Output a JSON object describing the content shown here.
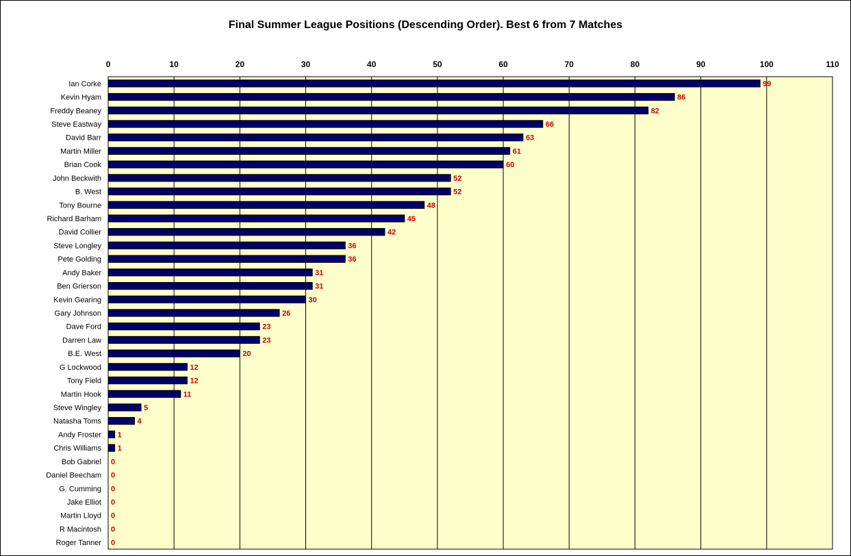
{
  "chart_data": {
    "type": "bar",
    "orientation": "horizontal",
    "title": "Final Summer League Positions (Descending Order). Best 6 from 7 Matches",
    "xlabel": "",
    "ylabel": "",
    "xlim": [
      0,
      110
    ],
    "x_ticks": [
      "0",
      "10",
      "20",
      "30",
      "40",
      "50",
      "60",
      "70",
      "80",
      "90",
      "100",
      "110"
    ],
    "x_axis_position": "top",
    "grid": true,
    "legend": "none",
    "categories": [
      "Ian Corke",
      "Kevin Hyam",
      "Freddy Beaney",
      "Steve Eastway",
      "David Barr",
      "Martin Miller",
      "Brian Cook",
      "John Beckwith",
      "B. West",
      "Tony Bourne",
      "Richard  Barham",
      "David Collier",
      "Steve Longley",
      "Pete Golding",
      "Andy Baker",
      "Ben Grierson",
      "Kevin Gearing",
      "Gary Johnson",
      "Dave Ford",
      "Darren Law",
      "B.E. West",
      "G Lockwood",
      "Tony Field",
      "Martin Hook",
      "Steve Wingley",
      "Natasha Toms",
      "Andy Froster",
      "Chris Williams",
      "Bob Gabriel",
      "Daniel Beecham",
      "G. Cumming",
      "Jake Elliot",
      "Martin Lloyd",
      "R Macintosh",
      "Roger Tanner"
    ],
    "values": [
      99,
      86,
      82,
      66,
      63,
      61,
      60,
      52,
      52,
      48,
      45,
      42,
      36,
      36,
      31,
      31,
      30,
      26,
      23,
      23,
      20,
      12,
      12,
      11,
      5,
      4,
      1,
      1,
      0,
      0,
      0,
      0,
      0,
      0,
      0
    ],
    "colors": {
      "bar_fill": "#000066",
      "plot_background": "#ffffcc",
      "data_label": "#cc0000",
      "gridline": "#000000"
    }
  }
}
